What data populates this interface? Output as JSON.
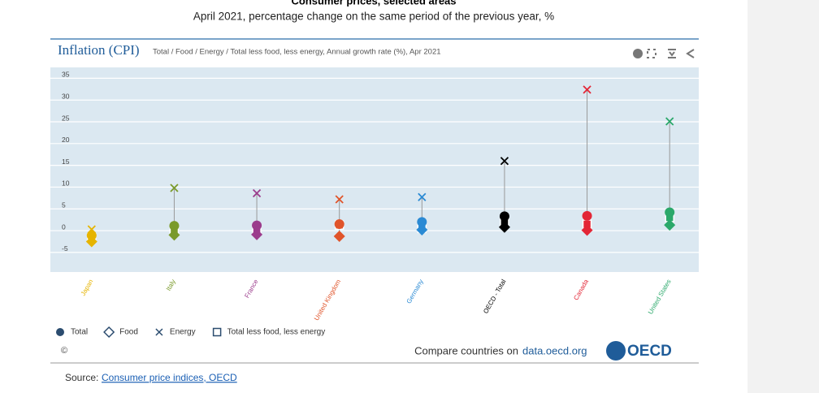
{
  "chart_data": {
    "type": "dot",
    "title": "Consumer prices, selected areas",
    "subtitle": "April 2021, percentage change on the same period of the previous year, %",
    "panel_title": "Inflation (CPI)",
    "panel_subtitle": "Total / Food / Energy / Total less food, less energy, Annual growth rate (%), Apr 2021",
    "categories": [
      "Japan",
      "Italy",
      "France",
      "United Kingdom",
      "Germany",
      "OECD - Total",
      "Canada",
      "United States"
    ],
    "category_colors": [
      "#e6b400",
      "#7a9a2a",
      "#9b3c8c",
      "#e0542a",
      "#2a8ad4",
      "#000000",
      "#e32636",
      "#2aa86a"
    ],
    "series": [
      {
        "name": "Total",
        "marker": "circle",
        "values": [
          -1.1,
          1.1,
          1.2,
          1.5,
          2.0,
          3.3,
          3.4,
          4.2
        ]
      },
      {
        "name": "Food",
        "marker": "diamond",
        "values": [
          -2.5,
          -1.0,
          -0.9,
          -1.3,
          0.2,
          0.8,
          0.1,
          1.3
        ]
      },
      {
        "name": "Energy",
        "marker": "x",
        "values": [
          0.3,
          9.8,
          8.6,
          7.2,
          7.7,
          16.0,
          32.4,
          25.1
        ]
      },
      {
        "name": "Total less food, less energy",
        "marker": "square",
        "values": [
          -1.6,
          0.2,
          0.2,
          1.3,
          0.5,
          1.8,
          1.5,
          3.0
        ]
      }
    ],
    "ylim": [
      -9.5,
      37.5
    ],
    "yticks": [
      -5,
      0,
      5,
      10,
      15,
      20,
      25,
      30,
      35
    ],
    "grid": true,
    "copyright": "©",
    "compare": "Compare countries on",
    "compare_link": "data.oecd.org",
    "logo": "OECD",
    "source_label": "Source:",
    "source_link": "Consumer price indices, OECD"
  }
}
